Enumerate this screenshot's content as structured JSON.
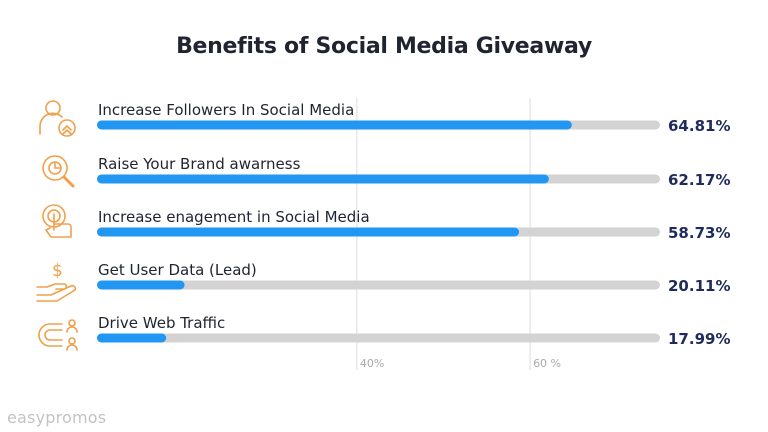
{
  "chart_data": {
    "type": "bar",
    "orientation": "horizontal",
    "title": "Benefits of Social Media Giveaway",
    "categories": [
      "Increase Followers In Social Media",
      "Raise Your Brand awarness",
      "Increase enagement in Social Media",
      "Get User Data (Lead)",
      "Drive Web Traffic"
    ],
    "values": [
      64.81,
      62.17,
      58.73,
      20.11,
      17.99
    ],
    "value_labels": [
      "64.81%",
      "62.17%",
      "58.73%",
      "20.11%",
      "17.99%"
    ],
    "icons": [
      "followers-icon",
      "brand-search-icon",
      "touch-engagement-icon",
      "money-hand-icon",
      "magnet-users-icon"
    ],
    "gridlines": [
      {
        "value": 40,
        "label": "40%"
      },
      {
        "value": 60,
        "label": "60 %"
      }
    ],
    "xlim": [
      10,
      75
    ],
    "grid": true,
    "colors": {
      "bar": "#2196f3",
      "track": "#d3d3d3",
      "icon": "#f0a04b",
      "value_text": "#1e2b5c",
      "grid": "#dcdcdc"
    }
  },
  "brand": "easypromos"
}
